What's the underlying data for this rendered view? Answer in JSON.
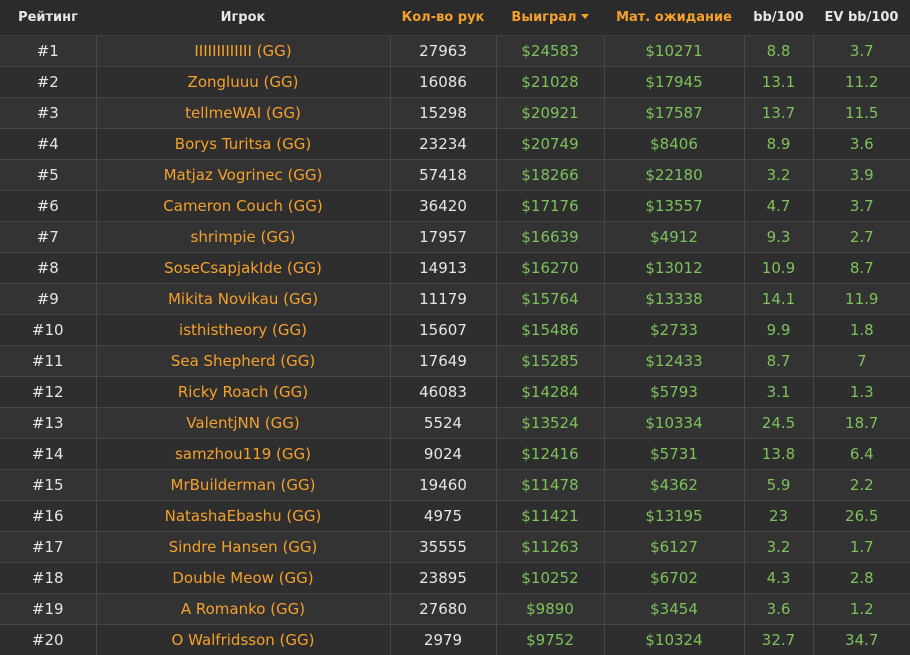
{
  "headers": {
    "rank": "Рейтинг",
    "player": "Игрок",
    "hands": "Кол-во рук",
    "won": "Выиграл",
    "ev": "Мат. ожидание",
    "bb100": "bb/100",
    "evbb100": "EV bb/100"
  },
  "colors": {
    "background": "#2b2b2b",
    "accent_orange": "#f4a12c",
    "money_green": "#7ec25c",
    "text_light": "#e6e6e6"
  },
  "rows": [
    {
      "rank": "#1",
      "player": "IIIIIIIIIIIII (GG)",
      "hands": "27963",
      "won": "$24583",
      "ev": "$10271",
      "bb100": "8.8",
      "evbb100": "3.7"
    },
    {
      "rank": "#2",
      "player": "Zongluuu (GG)",
      "hands": "16086",
      "won": "$21028",
      "ev": "$17945",
      "bb100": "13.1",
      "evbb100": "11.2"
    },
    {
      "rank": "#3",
      "player": "tellmeWAI (GG)",
      "hands": "15298",
      "won": "$20921",
      "ev": "$17587",
      "bb100": "13.7",
      "evbb100": "11.5"
    },
    {
      "rank": "#4",
      "player": "Borys Turitsa (GG)",
      "hands": "23234",
      "won": "$20749",
      "ev": "$8406",
      "bb100": "8.9",
      "evbb100": "3.6"
    },
    {
      "rank": "#5",
      "player": "Matjaz Vogrinec (GG)",
      "hands": "57418",
      "won": "$18266",
      "ev": "$22180",
      "bb100": "3.2",
      "evbb100": "3.9"
    },
    {
      "rank": "#6",
      "player": "Cameron Couch (GG)",
      "hands": "36420",
      "won": "$17176",
      "ev": "$13557",
      "bb100": "4.7",
      "evbb100": "3.7"
    },
    {
      "rank": "#7",
      "player": "shrimpie (GG)",
      "hands": "17957",
      "won": "$16639",
      "ev": "$4912",
      "bb100": "9.3",
      "evbb100": "2.7"
    },
    {
      "rank": "#8",
      "player": "SoseCsapjakIde (GG)",
      "hands": "14913",
      "won": "$16270",
      "ev": "$13012",
      "bb100": "10.9",
      "evbb100": "8.7"
    },
    {
      "rank": "#9",
      "player": "Mikita Novikau (GG)",
      "hands": "11179",
      "won": "$15764",
      "ev": "$13338",
      "bb100": "14.1",
      "evbb100": "11.9"
    },
    {
      "rank": "#10",
      "player": "isthistheory (GG)",
      "hands": "15607",
      "won": "$15486",
      "ev": "$2733",
      "bb100": "9.9",
      "evbb100": "1.8"
    },
    {
      "rank": "#11",
      "player": "Sea Shepherd (GG)",
      "hands": "17649",
      "won": "$15285",
      "ev": "$12433",
      "bb100": "8.7",
      "evbb100": "7"
    },
    {
      "rank": "#12",
      "player": "Ricky Roach (GG)",
      "hands": "46083",
      "won": "$14284",
      "ev": "$5793",
      "bb100": "3.1",
      "evbb100": "1.3"
    },
    {
      "rank": "#13",
      "player": "ValentjNN (GG)",
      "hands": "5524",
      "won": "$13524",
      "ev": "$10334",
      "bb100": "24.5",
      "evbb100": "18.7"
    },
    {
      "rank": "#14",
      "player": "samzhou119 (GG)",
      "hands": "9024",
      "won": "$12416",
      "ev": "$5731",
      "bb100": "13.8",
      "evbb100": "6.4"
    },
    {
      "rank": "#15",
      "player": "MrBuilderman (GG)",
      "hands": "19460",
      "won": "$11478",
      "ev": "$4362",
      "bb100": "5.9",
      "evbb100": "2.2"
    },
    {
      "rank": "#16",
      "player": "NatashaEbashu (GG)",
      "hands": "4975",
      "won": "$11421",
      "ev": "$13195",
      "bb100": "23",
      "evbb100": "26.5"
    },
    {
      "rank": "#17",
      "player": "Sindre Hansen (GG)",
      "hands": "35555",
      "won": "$11263",
      "ev": "$6127",
      "bb100": "3.2",
      "evbb100": "1.7"
    },
    {
      "rank": "#18",
      "player": "Double Meow (GG)",
      "hands": "23895",
      "won": "$10252",
      "ev": "$6702",
      "bb100": "4.3",
      "evbb100": "2.8"
    },
    {
      "rank": "#19",
      "player": "A Romanko (GG)",
      "hands": "27680",
      "won": "$9890",
      "ev": "$3454",
      "bb100": "3.6",
      "evbb100": "1.2"
    },
    {
      "rank": "#20",
      "player": "O Walfridsson (GG)",
      "hands": "2979",
      "won": "$9752",
      "ev": "$10324",
      "bb100": "32.7",
      "evbb100": "34.7"
    }
  ]
}
